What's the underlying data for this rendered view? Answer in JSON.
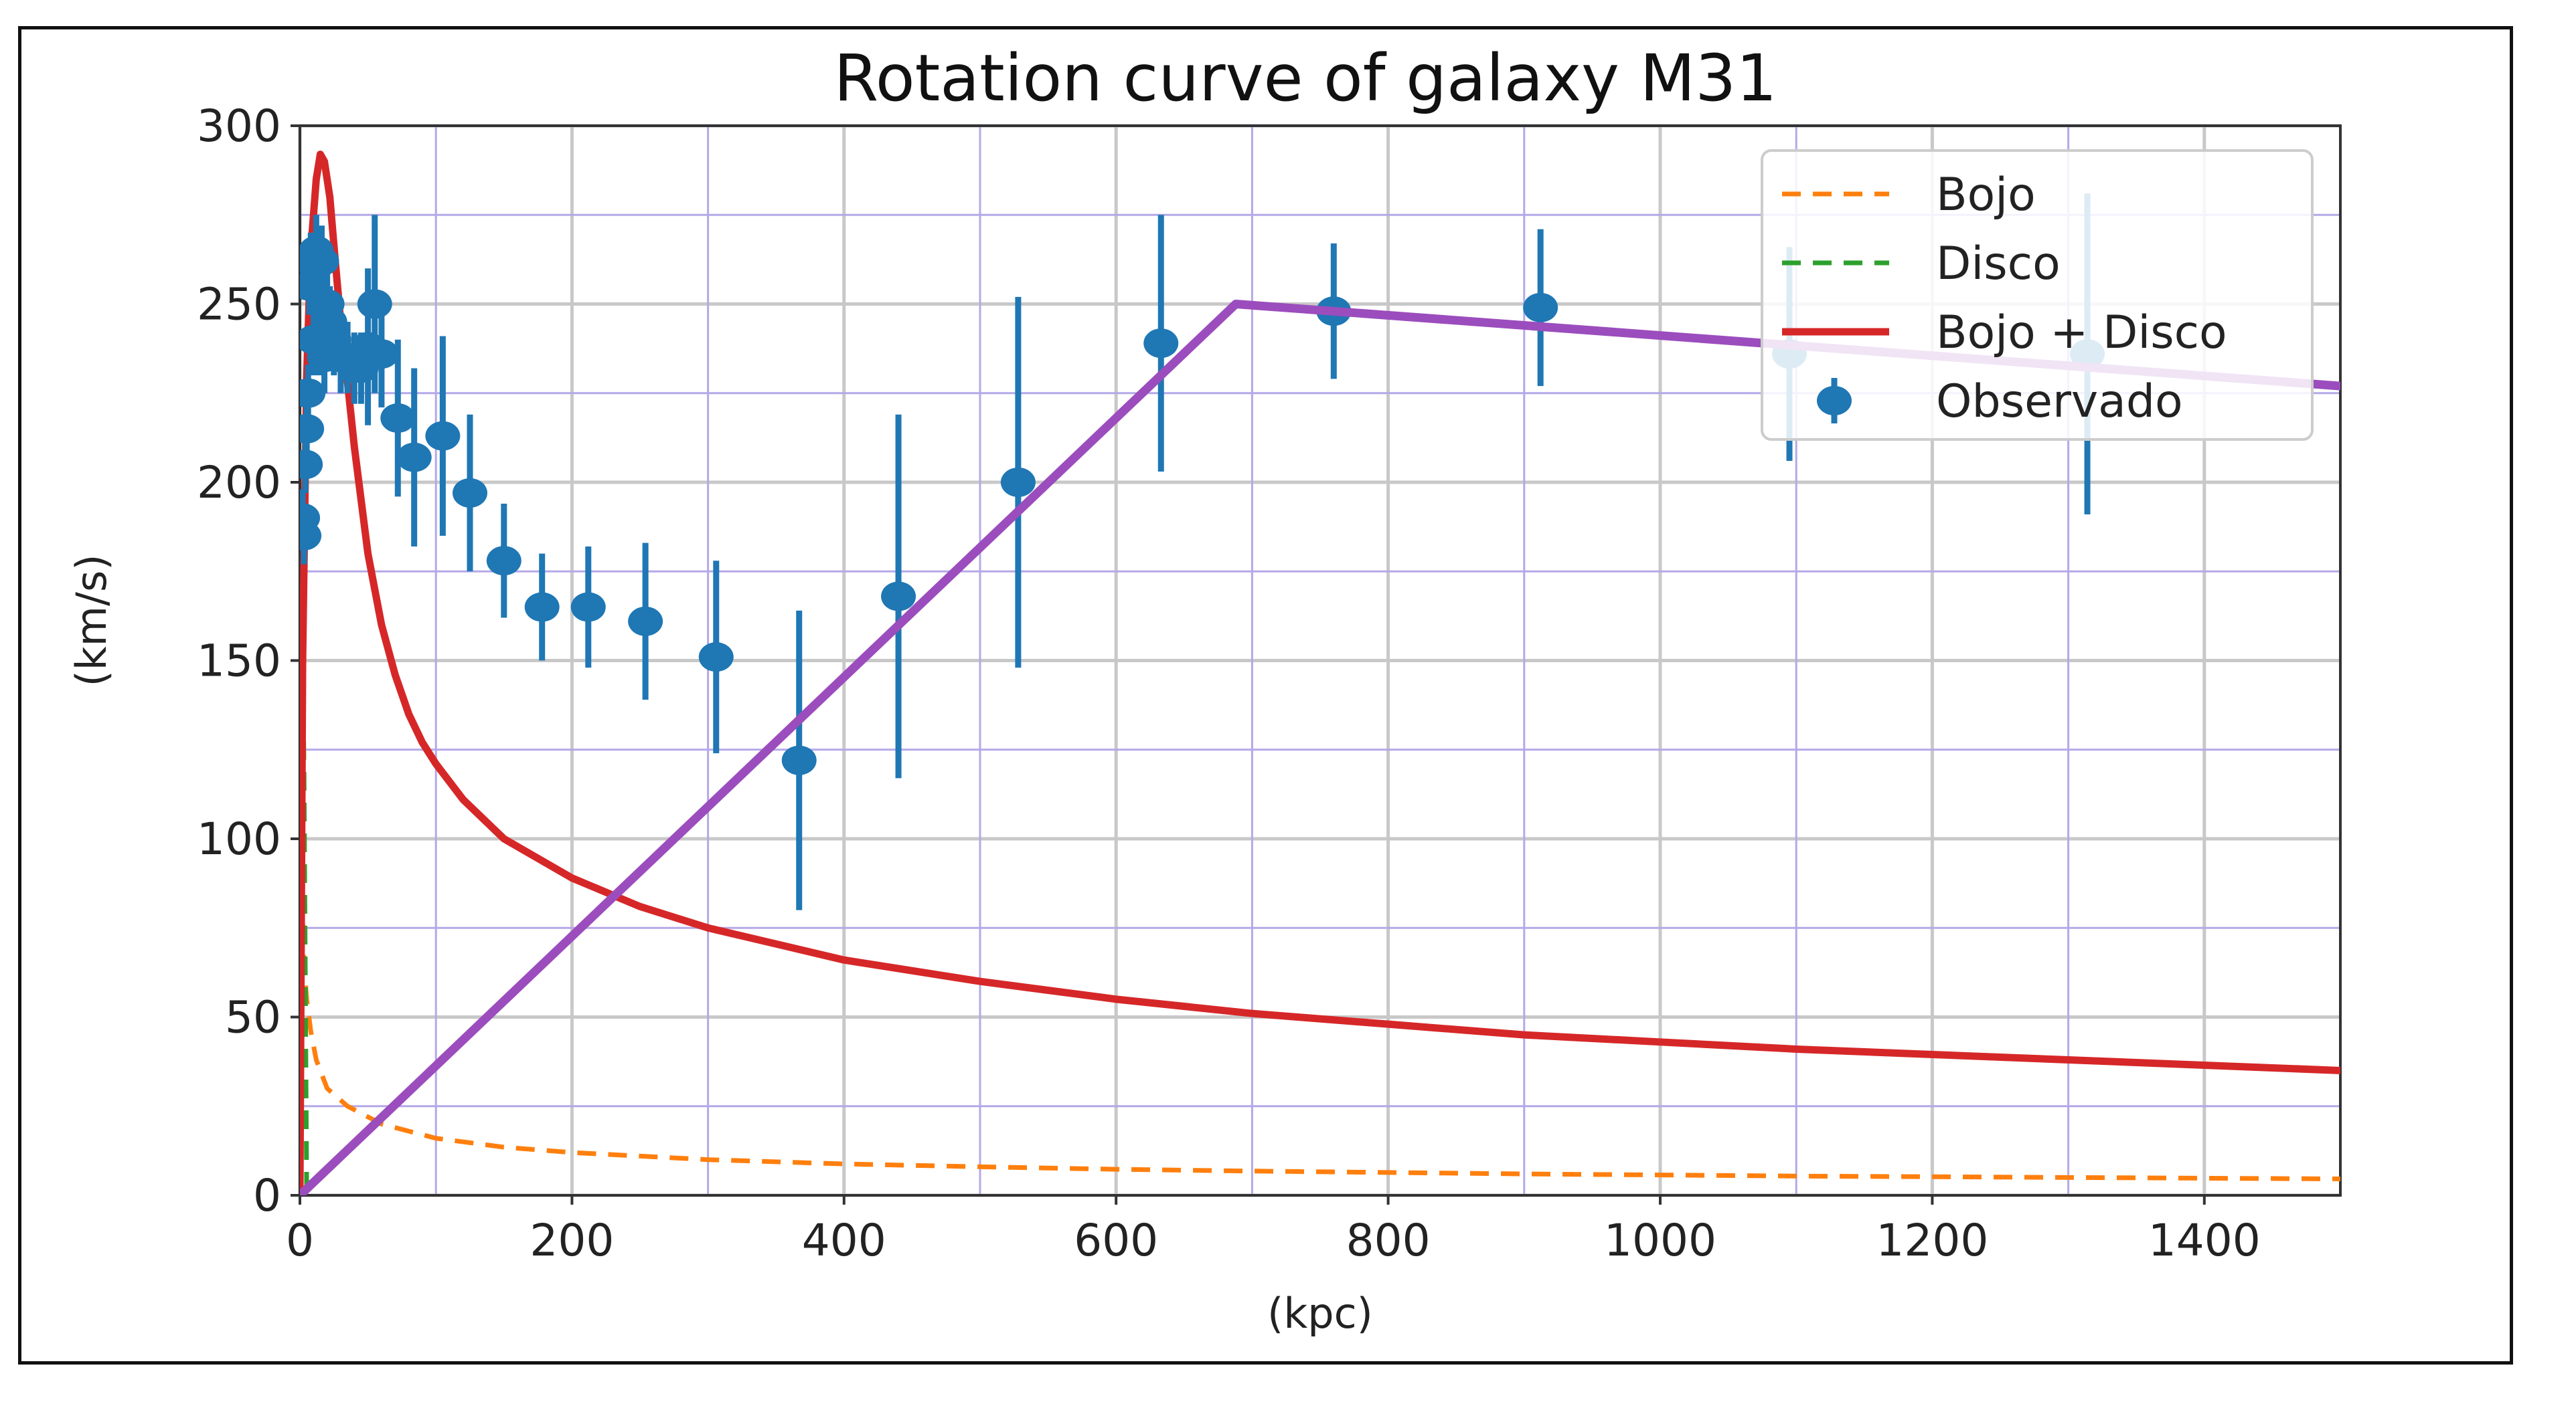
{
  "chart_data": {
    "type": "line",
    "title": "Rotation curve of galaxy M31",
    "xlabel": "(kpc)",
    "ylabel": "(km/s)",
    "xlim": [
      0,
      1500
    ],
    "ylim": [
      0,
      300
    ],
    "xticks": [
      0,
      200,
      400,
      600,
      800,
      1000,
      1200,
      1400
    ],
    "yticks": [
      0,
      50,
      100,
      150,
      200,
      250,
      300
    ],
    "grid": true,
    "legend_position": "top-right",
    "series": [
      {
        "name": "Bojo",
        "style": "dashed",
        "color": "#ff7f0e",
        "x": [
          0.5,
          1,
          2,
          3,
          5,
          8,
          12,
          20,
          35,
          60,
          100,
          150,
          200,
          300,
          400,
          500,
          600,
          700,
          800,
          900,
          1000,
          1100,
          1200,
          1300,
          1400,
          1500
        ],
        "y": [
          0,
          120,
          80,
          65,
          55,
          46,
          38,
          30,
          25,
          20,
          16,
          13.5,
          12,
          10,
          8.8,
          8,
          7.3,
          6.8,
          6.4,
          6,
          5.7,
          5.4,
          5.2,
          5,
          4.8,
          4.6
        ]
      },
      {
        "name": "Disco",
        "style": "dashed",
        "color": "#2ca02c",
        "x": [
          0,
          0.5,
          1,
          2,
          3,
          4,
          5
        ],
        "y": [
          0,
          40,
          90,
          150,
          120,
          60,
          0
        ]
      },
      {
        "name": "Bojo + Disco",
        "style": "solid",
        "color": "#d62728",
        "x": [
          0,
          2,
          5,
          8,
          12,
          15,
          18,
          22,
          26,
          30,
          35,
          40,
          50,
          60,
          70,
          80,
          90,
          100,
          120,
          150,
          200,
          250,
          300,
          400,
          500,
          600,
          700,
          800,
          900,
          1000,
          1100,
          1200,
          1300,
          1400,
          1500
        ],
        "y": [
          0,
          150,
          230,
          265,
          285,
          292,
          290,
          280,
          262,
          245,
          228,
          210,
          180,
          160,
          146,
          135,
          127,
          121,
          111,
          100,
          89,
          81,
          75,
          66,
          60,
          55,
          51,
          48,
          45,
          43,
          41,
          39.5,
          38,
          36.5,
          35
        ]
      },
      {
        "name": "Observado",
        "style": "errorbar",
        "color": "#1f77b4",
        "x": [
          2,
          3,
          4,
          5,
          6,
          7,
          8,
          10,
          12,
          14,
          16,
          18,
          20,
          22,
          25,
          30,
          35,
          40,
          45,
          50,
          55,
          60,
          72,
          84,
          105,
          125,
          150,
          178,
          212,
          254,
          306,
          367,
          440,
          528,
          633,
          760,
          912,
          1095,
          1314
        ],
        "y": [
          190,
          185,
          205,
          215,
          225,
          255,
          262,
          240,
          265,
          240,
          262,
          235,
          250,
          245,
          240,
          235,
          235,
          232,
          232,
          238,
          250,
          236,
          218,
          207,
          213,
          197,
          178,
          165,
          165,
          161,
          151,
          122,
          168,
          200,
          239,
          248,
          249,
          236,
          236
        ],
        "yerr": [
          8,
          8,
          8,
          8,
          8,
          8,
          8,
          10,
          10,
          10,
          10,
          10,
          10,
          10,
          10,
          10,
          10,
          10,
          10,
          22,
          25,
          15,
          22,
          25,
          28,
          22,
          16,
          15,
          17,
          22,
          27,
          42,
          51,
          52,
          36,
          19,
          22,
          30,
          45
        ]
      },
      {
        "name": "",
        "style": "solid",
        "color": "#9b4dbd",
        "x": [
          0,
          688,
          1500
        ],
        "y": [
          0,
          250,
          227
        ]
      }
    ]
  }
}
